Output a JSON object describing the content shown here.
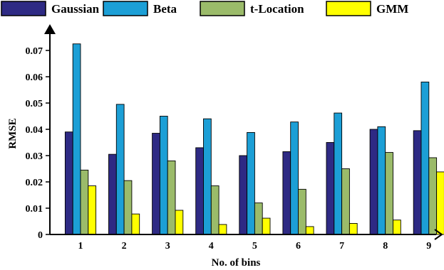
{
  "chart_data": {
    "type": "bar",
    "title": "",
    "xlabel": "No. of bins",
    "ylabel": "RMSE",
    "categories": [
      "1",
      "2",
      "3",
      "4",
      "5",
      "6",
      "7",
      "8",
      "9"
    ],
    "ylim": [
      0,
      0.08
    ],
    "yticks": [
      0,
      0.01,
      0.02,
      0.03,
      0.04,
      0.05,
      0.06,
      0.07
    ],
    "ytick_labels": [
      "0",
      "0.01",
      "0.02",
      "0.03",
      "0.04",
      "0.05",
      "0.06",
      "0.07"
    ],
    "legend_position": "top",
    "grid": false,
    "series": [
      {
        "name": "Gaussian",
        "color": "#2e2a84",
        "values": [
          0.039,
          0.0305,
          0.0385,
          0.033,
          0.03,
          0.0315,
          0.035,
          0.04,
          0.0395
        ]
      },
      {
        "name": "Beta",
        "color": "#1c9fd6",
        "values": [
          0.0725,
          0.0495,
          0.045,
          0.044,
          0.0388,
          0.0428,
          0.0462,
          0.041,
          0.058
        ]
      },
      {
        "name": "t-Location",
        "color": "#9bbb6a",
        "values": [
          0.0245,
          0.0205,
          0.028,
          0.0185,
          0.012,
          0.0172,
          0.025,
          0.0312,
          0.0292
        ]
      },
      {
        "name": "GMM",
        "color": "#ffff00",
        "values": [
          0.0185,
          0.0078,
          0.0092,
          0.0038,
          0.0062,
          0.003,
          0.0042,
          0.0055,
          0.0238
        ]
      }
    ]
  }
}
